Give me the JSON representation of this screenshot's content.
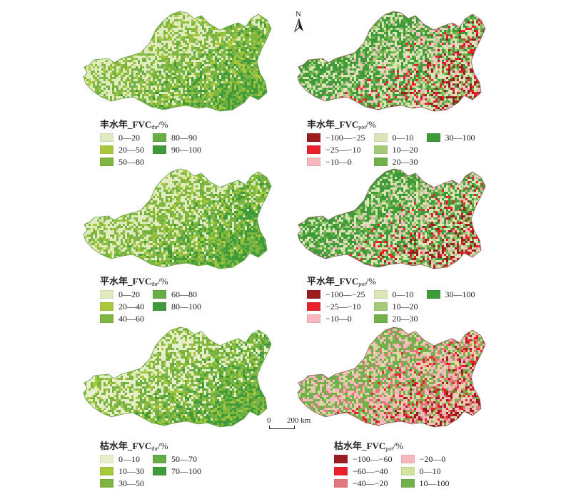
{
  "north_arrow": {
    "letter": "N"
  },
  "scale_bar": {
    "start": "0",
    "end": "200 km"
  },
  "panels": [
    {
      "prefix": "丰水年_FVC",
      "sub": "thr",
      "suffix": "/%",
      "palette": [
        "#e0ebbf",
        "#a9c93d",
        "#7fb641",
        "#69ad45",
        "#3f9a3a"
      ],
      "items": [
        {
          "label": "0—20",
          "color": "#e0ebbf"
        },
        {
          "label": "20—50",
          "color": "#a9c93d"
        },
        {
          "label": "50—80",
          "color": "#7fb641"
        },
        {
          "label": "80—90",
          "color": "#69ad45"
        },
        {
          "label": "90—100",
          "color": "#3f9a3a"
        }
      ]
    },
    {
      "prefix": "丰水年_FVC",
      "sub": "pot",
      "suffix": "/%",
      "palette": [
        "#9b1d20",
        "#e8212d",
        "#f6b8bd",
        "#dbe6b8",
        "#a3cb7a",
        "#71b14a",
        "#3f9a3a"
      ],
      "items": [
        {
          "label": "−100—−25",
          "color": "#9b1d20"
        },
        {
          "label": "−25—−10",
          "color": "#e8212d"
        },
        {
          "label": "−10—0",
          "color": "#f6b8bd"
        },
        {
          "label": "0—10",
          "color": "#dbe6b8"
        },
        {
          "label": "10—20",
          "color": "#a3cb7a"
        },
        {
          "label": "20—30",
          "color": "#71b14a"
        },
        {
          "label": "30—100",
          "color": "#3f9a3a"
        }
      ]
    },
    {
      "prefix": "平水年_FVC",
      "sub": "thr",
      "suffix": "/%",
      "palette": [
        "#e0ebbf",
        "#a9c93d",
        "#7fb641",
        "#69ad45",
        "#3f9a3a"
      ],
      "items": [
        {
          "label": "0—20",
          "color": "#e0ebbf"
        },
        {
          "label": "20—40",
          "color": "#a9c93d"
        },
        {
          "label": "40—60",
          "color": "#7fb641"
        },
        {
          "label": "60—80",
          "color": "#69ad45"
        },
        {
          "label": "80—100",
          "color": "#3f9a3a"
        }
      ]
    },
    {
      "prefix": "平水年_FVC",
      "sub": "pot",
      "suffix": "/%",
      "palette": [
        "#9b1d20",
        "#e8212d",
        "#f6b8bd",
        "#dbe6b8",
        "#a3cb7a",
        "#71b14a",
        "#3f9a3a"
      ],
      "items": [
        {
          "label": "−100—−25",
          "color": "#9b1d20"
        },
        {
          "label": "−25—−10",
          "color": "#e8212d"
        },
        {
          "label": "−10—0",
          "color": "#f6b8bd"
        },
        {
          "label": "0—10",
          "color": "#dbe6b8"
        },
        {
          "label": "10—20",
          "color": "#a3cb7a"
        },
        {
          "label": "20—30",
          "color": "#71b14a"
        },
        {
          "label": "30—100",
          "color": "#3f9a3a"
        }
      ]
    },
    {
      "prefix": "枯水年_FVC",
      "sub": "thr",
      "suffix": "/%",
      "palette": [
        "#e6efc9",
        "#a9c93d",
        "#7fb641",
        "#69ad45",
        "#3f9a3a"
      ],
      "items": [
        {
          "label": "0—10",
          "color": "#e6efc9"
        },
        {
          "label": "10—30",
          "color": "#a9c93d"
        },
        {
          "label": "30—50",
          "color": "#7fb641"
        },
        {
          "label": "50—70",
          "color": "#69ad45"
        },
        {
          "label": "70—100",
          "color": "#3f9a3a"
        }
      ]
    },
    {
      "prefix": "枯水年_FVC",
      "sub": "pot",
      "suffix": "/%",
      "palette": [
        "#9b1d20",
        "#e8212d",
        "#e4777b",
        "#f6b8bd",
        "#d3e29c",
        "#71b14a"
      ],
      "items": [
        {
          "label": "−100—−60",
          "color": "#9b1d20"
        },
        {
          "label": "−60—−40",
          "color": "#e8212d"
        },
        {
          "label": "−40—−20",
          "color": "#e4777b"
        },
        {
          "label": "−20—0",
          "color": "#f6b8bd"
        },
        {
          "label": "0—10",
          "color": "#d3e29c"
        },
        {
          "label": "10—100",
          "color": "#71b14a"
        }
      ]
    }
  ]
}
